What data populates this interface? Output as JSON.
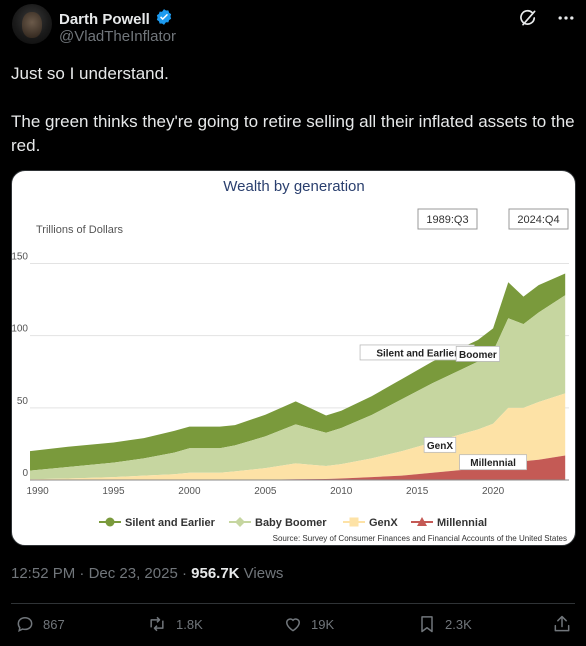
{
  "author": {
    "name": "Darth Powell",
    "handle": "@VladTheInflator",
    "verified": true
  },
  "post": {
    "line1": "Just so I understand.",
    "line2": "The green thinks they're going to retire selling all their inflated assets to the red."
  },
  "meta": {
    "time": "12:52 PM",
    "separator1": " · ",
    "date": "Dec 23, 2025",
    "separator2": " · ",
    "views_count": "956.7K",
    "views_label": " Views"
  },
  "actions": {
    "replies": "867",
    "reposts": "1.8K",
    "likes": "19K",
    "bookmarks": "2.3K"
  },
  "colors": {
    "silent": "#7a9a3c",
    "boomer": "#c6d6a0",
    "genx": "#fde2a6",
    "millennial": "#c45a55",
    "verified": "#1d9bf0"
  },
  "chart_data": {
    "type": "area",
    "stacked": true,
    "title": "Wealth by generation",
    "ylabel": "Trillions of Dollars",
    "start_label": "1989:Q3",
    "end_label": "2024:Q4",
    "source": "Source: Survey of Consumer Finances and Financial Accounts of the United States",
    "xlim": [
      1989.5,
      2025
    ],
    "ylim": [
      0,
      160
    ],
    "x_ticks": [
      1990,
      1995,
      2000,
      2005,
      2010,
      2015,
      2020
    ],
    "y_ticks": [
      0,
      50,
      100,
      150
    ],
    "grid": true,
    "legend_position": "bottom",
    "x": [
      1989.5,
      1992,
      1995,
      1997,
      1999,
      2000,
      2002,
      2003,
      2005,
      2007,
      2008,
      2009,
      2010,
      2012,
      2014,
      2016,
      2018,
      2019,
      2020,
      2021,
      2022,
      2023,
      2024.75
    ],
    "series": [
      {
        "name": "Millennial",
        "values": [
          0,
          0,
          0,
          0,
          0,
          0,
          0,
          0,
          0.2,
          0.5,
          0.6,
          0.7,
          1,
          2,
          3,
          5,
          7,
          8,
          9,
          12,
          13,
          14,
          17
        ]
      },
      {
        "name": "GenX",
        "values": [
          0.5,
          1,
          2,
          3,
          4,
          5,
          5,
          6,
          8,
          11,
          10,
          9,
          10,
          13,
          17,
          21,
          25,
          27,
          30,
          38,
          37,
          40,
          43
        ]
      },
      {
        "name": "Baby Boomer",
        "values": [
          6,
          8,
          10,
          12,
          15,
          17,
          17,
          18,
          22,
          27,
          25,
          23,
          25,
          30,
          36,
          41,
          45,
          47,
          50,
          62,
          58,
          62,
          68
        ]
      },
      {
        "name": "Silent and Earlier",
        "values": [
          13.5,
          14,
          14,
          14,
          15,
          15,
          15,
          14,
          15,
          16,
          14,
          12,
          12,
          13,
          14,
          15,
          15,
          15,
          16,
          25,
          19,
          19,
          15
        ]
      }
    ],
    "annotations": [
      {
        "text": "Silent and Earlier",
        "x": 2015,
        "y": 88
      },
      {
        "text": "Boomer",
        "x": 2019,
        "y": 87
      },
      {
        "text": "GenX",
        "x": 2016.5,
        "y": 24
      },
      {
        "text": "Millennial",
        "x": 2020,
        "y": 12
      }
    ]
  }
}
